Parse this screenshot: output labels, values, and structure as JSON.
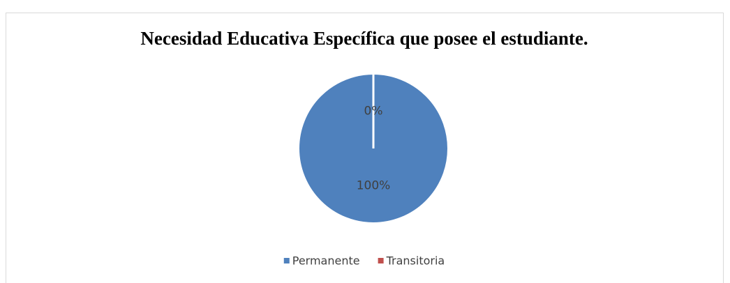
{
  "chart_data": {
    "type": "pie",
    "title": "Necesidad Educativa Específica que posee el estudiante.",
    "categories": [
      "Permanente",
      "Transitoria"
    ],
    "values": [
      100,
      0
    ],
    "value_labels": [
      "100%",
      "0%"
    ],
    "colors": [
      "#4f81bd",
      "#c0504d"
    ],
    "legend": "bottom"
  }
}
